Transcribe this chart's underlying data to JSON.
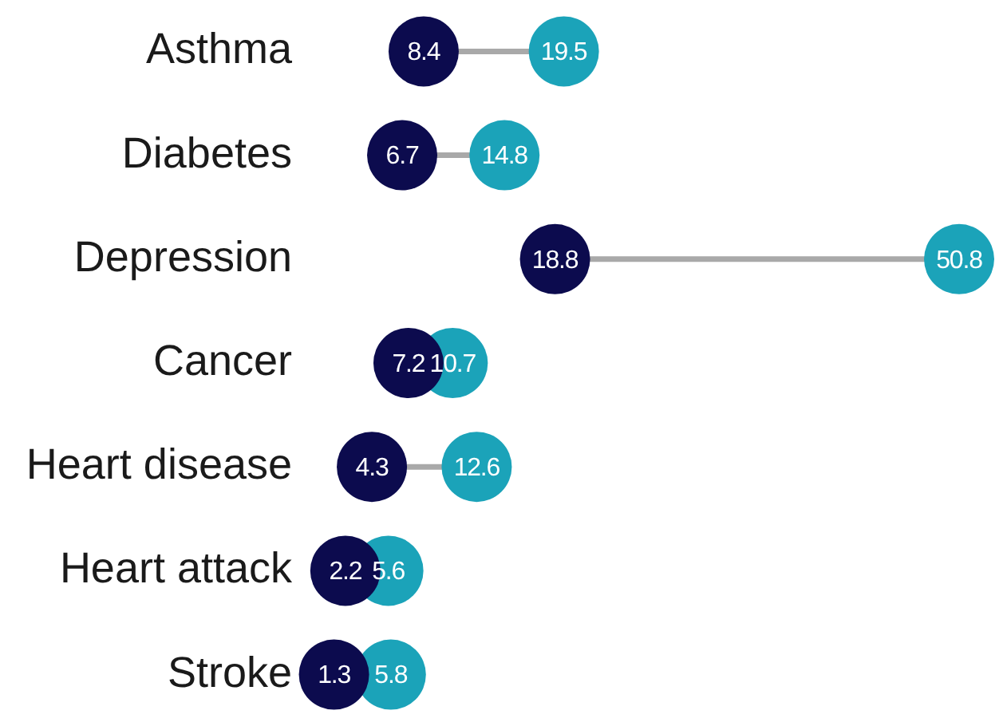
{
  "chart_data": {
    "type": "scatter",
    "orientation": "horizontal",
    "marker": "circle",
    "data_labels": true,
    "tick_labels": "y",
    "categories": [
      "Asthma",
      "Diabetes",
      "Depression",
      "Cancer",
      "Heart disease",
      "Heart attack",
      "Stroke"
    ],
    "series": [
      {
        "color": "#0c0b4e",
        "values": [
          8.4,
          6.7,
          18.8,
          7.2,
          4.3,
          2.2,
          1.3
        ]
      },
      {
        "color": "#1ba3b9",
        "values": [
          19.5,
          14.8,
          50.8,
          10.7,
          12.6,
          5.6,
          5.8
        ]
      }
    ]
  }
}
